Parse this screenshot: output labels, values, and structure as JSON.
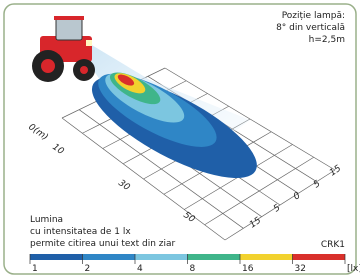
{
  "info": {
    "lines": [
      "Poziție lampă:",
      "8° din verticală",
      "h=2,5m"
    ]
  },
  "distance_labels": [
    "0(m)",
    "10",
    "30",
    "50"
  ],
  "lateral_labels": [
    "15",
    "5",
    "0",
    "5",
    "15"
  ],
  "note": {
    "lines": [
      "Lumina",
      "cu intensitatea de 1 lx",
      "permite citirea unui text din ziar"
    ]
  },
  "code": "CRK1",
  "scale": {
    "labels": [
      "1",
      "2",
      "4",
      "8",
      "16",
      "32",
      "[lx]"
    ],
    "colors": [
      "#1f5fa8",
      "#2f86c6",
      "#7cc6e0",
      "#3fb58a",
      "#f2d22e",
      "#d9302b"
    ]
  }
}
